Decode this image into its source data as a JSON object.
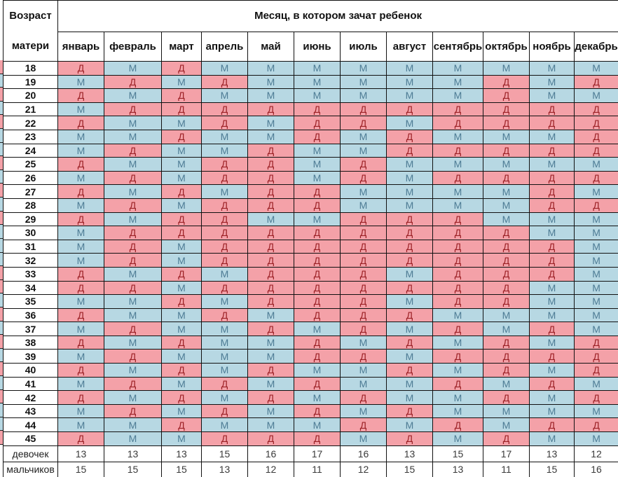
{
  "header": {
    "age_label_lines": [
      "Возраст",
      "матери"
    ],
    "months_title": "Месяц, в котором зачат ребенок",
    "months": [
      "январь",
      "февраль",
      "март",
      "апрель",
      "май",
      "июнь",
      "июль",
      "август",
      "сентябрь",
      "октябрь",
      "ноябрь",
      "декабрь"
    ]
  },
  "legend": {
    "girl_letter": "Д",
    "boy_letter": "М"
  },
  "colors": {
    "girl_bg": "#f4a1a8",
    "boy_bg": "#b7d8e3",
    "girl_text": "#9c2126",
    "boy_text": "#4d7b94"
  },
  "table": {
    "rows": [
      {
        "age": "18",
        "cells": "ДМДМММММММММ"
      },
      {
        "age": "19",
        "cells": "МДМДМММММДМД"
      },
      {
        "age": "20",
        "cells": "ДМДММММММДММ"
      },
      {
        "age": "21",
        "cells": "МДДДДДДДДДДД"
      },
      {
        "age": "22",
        "cells": "ДММДМДДМДДДД"
      },
      {
        "age": "23",
        "cells": "ММДММДМДМММД"
      },
      {
        "age": "24",
        "cells": "МДММДММДДДДД"
      },
      {
        "age": "25",
        "cells": "ДММДДМДМММММ"
      },
      {
        "age": "26",
        "cells": "МДМДДМДМДДДД"
      },
      {
        "age": "27",
        "cells": "ДМДМДДММММДМ"
      },
      {
        "age": "28",
        "cells": "МДМДДДММММДД"
      },
      {
        "age": "29",
        "cells": "ДМДДММДДДМММ"
      },
      {
        "age": "30",
        "cells": "МДДДДДДДДДММ"
      },
      {
        "age": "31",
        "cells": "МДМДДДДДДДДМ"
      },
      {
        "age": "32",
        "cells": "МДМДДДДДДДДМ"
      },
      {
        "age": "33",
        "cells": "ДМДМДДДМДДДМ"
      },
      {
        "age": "34",
        "cells": "ДДМДДДДДДДММ"
      },
      {
        "age": "35",
        "cells": "ММДМДДДМДДММ"
      },
      {
        "age": "36",
        "cells": "ДММДМДДДММММ"
      },
      {
        "age": "37",
        "cells": "МДММДМДМДМДМ"
      },
      {
        "age": "38",
        "cells": "ДМДММДМДМДМД"
      },
      {
        "age": "39",
        "cells": "МДМММДДМДДДД"
      },
      {
        "age": "40",
        "cells": "ДМДМДММДМДМД"
      },
      {
        "age": "41",
        "cells": "МДМДМДММДМДМ"
      },
      {
        "age": "42",
        "cells": "ДМДМДМДММДМД"
      },
      {
        "age": "43",
        "cells": "МДМДМДМДММММ"
      },
      {
        "age": "44",
        "cells": "ММДМММДМДМДД"
      },
      {
        "age": "45",
        "cells": "ДММДДДМДМДММ"
      }
    ]
  },
  "footer": {
    "girls_label": "девочек",
    "boys_label": "мальчиков",
    "girls_counts": [
      "13",
      "13",
      "13",
      "15",
      "16",
      "17",
      "16",
      "13",
      "15",
      "17",
      "13",
      "12"
    ],
    "boys_counts": [
      "15",
      "15",
      "15",
      "13",
      "12",
      "11",
      "12",
      "15",
      "13",
      "11",
      "15",
      "16"
    ]
  }
}
